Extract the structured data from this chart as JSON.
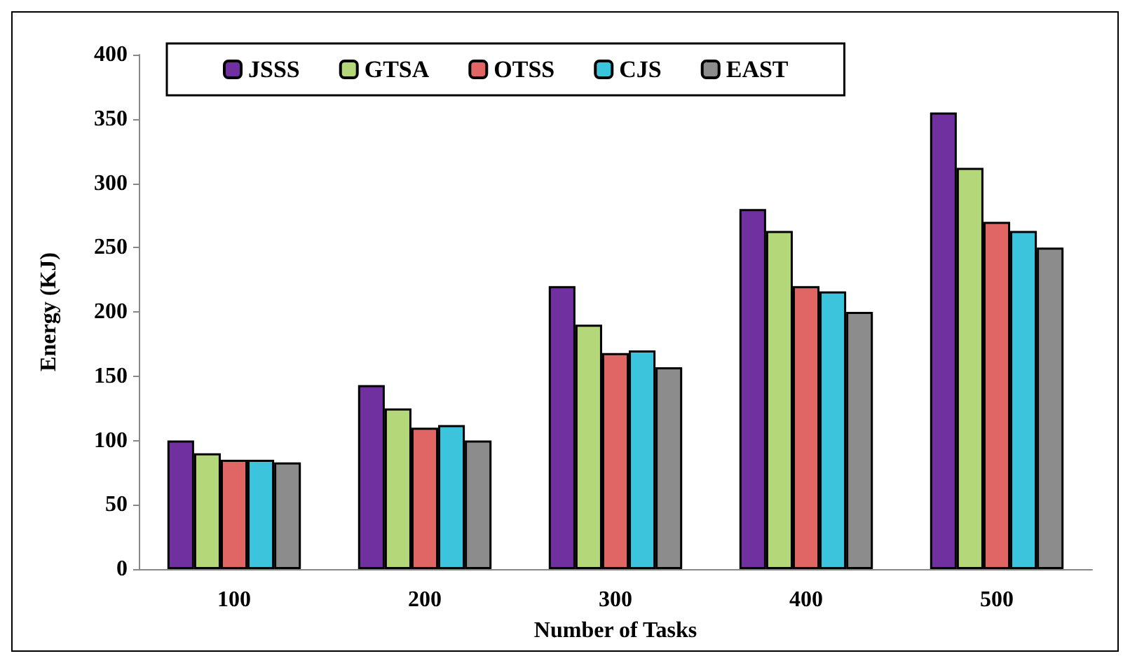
{
  "chart_data": {
    "type": "bar",
    "xlabel": "Number of Tasks",
    "ylabel": "Energy (KJ)",
    "categories": [
      "100",
      "200",
      "300",
      "400",
      "500"
    ],
    "series": [
      {
        "name": "JSSS",
        "color": "#7030a0",
        "values": [
          100,
          143,
          220,
          280,
          355
        ]
      },
      {
        "name": "GTSA",
        "color": "#b4d77a",
        "values": [
          90,
          125,
          190,
          263,
          312
        ]
      },
      {
        "name": "OTSS",
        "color": "#e06666",
        "values": [
          85,
          110,
          168,
          220,
          270
        ]
      },
      {
        "name": "CJS",
        "color": "#3cc4dc",
        "values": [
          85,
          112,
          170,
          216,
          263
        ]
      },
      {
        "name": "EAST",
        "color": "#8c8c8c",
        "values": [
          83,
          100,
          157,
          200,
          250
        ]
      }
    ],
    "ylim": [
      0,
      400
    ],
    "yticks": [
      0,
      50,
      100,
      150,
      200,
      250,
      300,
      350,
      400
    ],
    "grid": false,
    "legend": "top"
  }
}
